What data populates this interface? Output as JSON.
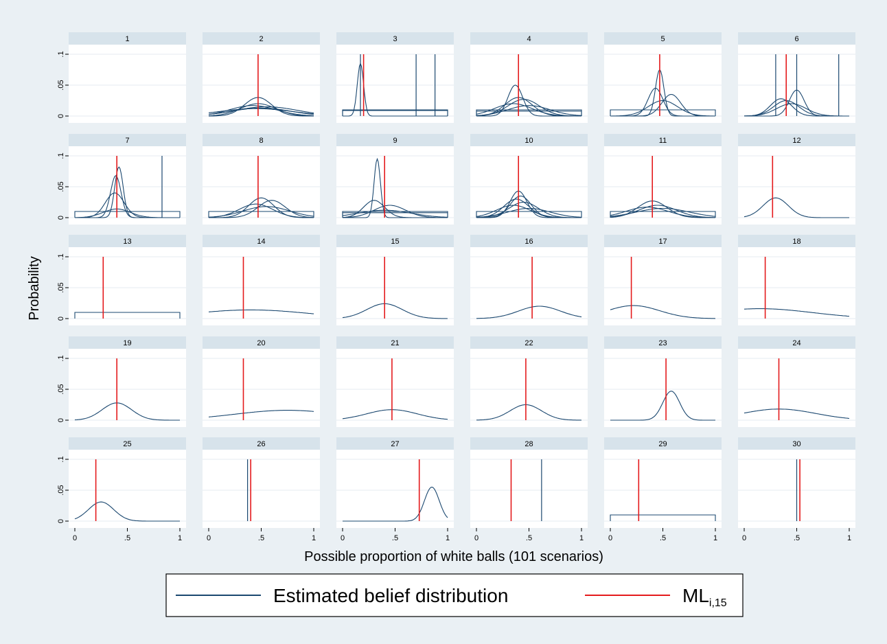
{
  "chart_data": {
    "type": "line",
    "layout": "small-multiples",
    "ylabel": "Probability",
    "xlabel": "Possible proportion of white balls (101 scenarios)",
    "xlim": [
      0,
      1
    ],
    "ylim": [
      0,
      0.1
    ],
    "xticks": [
      "0",
      ".5",
      "1"
    ],
    "yticks": [
      "0",
      ".05",
      ".1"
    ],
    "legend": {
      "placement": "bottom",
      "entries": [
        {
          "label": "Estimated belief distribution",
          "color": "#1a476f"
        },
        {
          "label": "ML",
          "subscript": "i,15",
          "color": "#e41a1c"
        }
      ]
    },
    "panels": [
      {
        "id": "1",
        "ml": null,
        "curves": []
      },
      {
        "id": "2",
        "ml": 0.47,
        "curves": [
          {
            "kind": "gauss",
            "mu": 0.47,
            "sd": 0.13,
            "peak": 0.03
          },
          {
            "kind": "gauss",
            "mu": 0.47,
            "sd": 0.17,
            "peak": 0.02
          },
          {
            "kind": "gauss",
            "mu": 0.5,
            "sd": 0.28,
            "peak": 0.013
          },
          {
            "kind": "gauss",
            "mu": 0.45,
            "sd": 0.35,
            "peak": 0.012
          },
          {
            "kind": "gauss",
            "mu": 0.55,
            "sd": 0.3,
            "peak": 0.015
          },
          {
            "kind": "gauss",
            "mu": 0.42,
            "sd": 0.22,
            "peak": 0.017
          }
        ]
      },
      {
        "id": "3",
        "ml": 0.2,
        "curves": [
          {
            "kind": "gauss",
            "mu": 0.17,
            "sd": 0.03,
            "peak": 0.085
          },
          {
            "kind": "flat",
            "level": 0.01
          },
          {
            "kind": "flat",
            "level": 0.009
          },
          {
            "kind": "spike",
            "x": 0.17
          },
          {
            "kind": "spike",
            "x": 0.7
          },
          {
            "kind": "spike",
            "x": 0.88
          }
        ]
      },
      {
        "id": "4",
        "ml": 0.4,
        "curves": [
          {
            "kind": "gauss",
            "mu": 0.37,
            "sd": 0.07,
            "peak": 0.05
          },
          {
            "kind": "gauss",
            "mu": 0.4,
            "sd": 0.13,
            "peak": 0.03
          },
          {
            "kind": "gauss",
            "mu": 0.45,
            "sd": 0.15,
            "peak": 0.027
          },
          {
            "kind": "gauss",
            "mu": 0.35,
            "sd": 0.18,
            "peak": 0.02
          },
          {
            "kind": "gauss",
            "mu": 0.5,
            "sd": 0.2,
            "peak": 0.017
          },
          {
            "kind": "flat",
            "level": 0.01
          },
          {
            "kind": "flat",
            "level": 0.008
          }
        ]
      },
      {
        "id": "5",
        "ml": 0.47,
        "curves": [
          {
            "kind": "gauss",
            "mu": 0.47,
            "sd": 0.04,
            "peak": 0.075
          },
          {
            "kind": "gauss",
            "mu": 0.43,
            "sd": 0.07,
            "peak": 0.045
          },
          {
            "kind": "gauss",
            "mu": 0.58,
            "sd": 0.09,
            "peak": 0.035
          },
          {
            "kind": "gauss",
            "mu": 0.5,
            "sd": 0.14,
            "peak": 0.025
          },
          {
            "kind": "flat",
            "level": 0.01
          }
        ]
      },
      {
        "id": "6",
        "ml": 0.4,
        "curves": [
          {
            "kind": "gauss",
            "mu": 0.5,
            "sd": 0.07,
            "peak": 0.042
          },
          {
            "kind": "gauss",
            "mu": 0.35,
            "sd": 0.1,
            "peak": 0.028
          },
          {
            "kind": "gauss",
            "mu": 0.4,
            "sd": 0.12,
            "peak": 0.025
          },
          {
            "kind": "gauss",
            "mu": 0.45,
            "sd": 0.14,
            "peak": 0.02
          },
          {
            "kind": "spike",
            "x": 0.3
          },
          {
            "kind": "spike",
            "x": 0.5
          },
          {
            "kind": "spike",
            "x": 0.9
          }
        ]
      },
      {
        "id": "7",
        "ml": 0.4,
        "curves": [
          {
            "kind": "gauss",
            "mu": 0.42,
            "sd": 0.04,
            "peak": 0.082
          },
          {
            "kind": "gauss",
            "mu": 0.39,
            "sd": 0.05,
            "peak": 0.068
          },
          {
            "kind": "gauss",
            "mu": 0.38,
            "sd": 0.09,
            "peak": 0.04
          },
          {
            "kind": "gauss",
            "mu": 0.4,
            "sd": 0.13,
            "peak": 0.014
          },
          {
            "kind": "flat",
            "level": 0.01
          },
          {
            "kind": "spike",
            "x": 0.83
          }
        ]
      },
      {
        "id": "8",
        "ml": 0.47,
        "curves": [
          {
            "kind": "gauss",
            "mu": 0.5,
            "sd": 0.12,
            "peak": 0.032
          },
          {
            "kind": "gauss",
            "mu": 0.6,
            "sd": 0.13,
            "peak": 0.028
          },
          {
            "kind": "gauss",
            "mu": 0.45,
            "sd": 0.16,
            "peak": 0.022
          },
          {
            "kind": "gauss",
            "mu": 0.55,
            "sd": 0.22,
            "peak": 0.018
          },
          {
            "kind": "flat",
            "level": 0.01
          }
        ]
      },
      {
        "id": "9",
        "ml": 0.4,
        "curves": [
          {
            "kind": "gauss",
            "mu": 0.33,
            "sd": 0.03,
            "peak": 0.095
          },
          {
            "kind": "gauss",
            "mu": 0.3,
            "sd": 0.1,
            "peak": 0.028
          },
          {
            "kind": "gauss",
            "mu": 0.45,
            "sd": 0.15,
            "peak": 0.02
          },
          {
            "kind": "gauss",
            "mu": 0.4,
            "sd": 0.25,
            "peak": 0.012
          },
          {
            "kind": "flat",
            "level": 0.01
          },
          {
            "kind": "flat",
            "level": 0.008
          }
        ]
      },
      {
        "id": "10",
        "ml": 0.4,
        "curves": [
          {
            "kind": "gauss",
            "mu": 0.4,
            "sd": 0.08,
            "peak": 0.043
          },
          {
            "kind": "gauss",
            "mu": 0.42,
            "sd": 0.1,
            "peak": 0.035
          },
          {
            "kind": "gauss",
            "mu": 0.38,
            "sd": 0.12,
            "peak": 0.03
          },
          {
            "kind": "gauss",
            "mu": 0.45,
            "sd": 0.14,
            "peak": 0.025
          },
          {
            "kind": "gauss",
            "mu": 0.35,
            "sd": 0.16,
            "peak": 0.02
          },
          {
            "kind": "gauss",
            "mu": 0.5,
            "sd": 0.2,
            "peak": 0.015
          },
          {
            "kind": "flat",
            "level": 0.01
          }
        ]
      },
      {
        "id": "11",
        "ml": 0.4,
        "curves": [
          {
            "kind": "gauss",
            "mu": 0.4,
            "sd": 0.14,
            "peak": 0.027
          },
          {
            "kind": "gauss",
            "mu": 0.45,
            "sd": 0.18,
            "peak": 0.02
          },
          {
            "kind": "gauss",
            "mu": 0.35,
            "sd": 0.2,
            "peak": 0.017
          },
          {
            "kind": "gauss",
            "mu": 0.5,
            "sd": 0.25,
            "peak": 0.015
          },
          {
            "kind": "flat",
            "level": 0.01
          }
        ]
      },
      {
        "id": "12",
        "ml": 0.27,
        "curves": [
          {
            "kind": "gauss",
            "mu": 0.3,
            "sd": 0.12,
            "peak": 0.032
          }
        ]
      },
      {
        "id": "13",
        "ml": 0.27,
        "curves": [
          {
            "kind": "flat",
            "level": 0.01
          }
        ]
      },
      {
        "id": "14",
        "ml": 0.33,
        "curves": [
          {
            "kind": "gauss",
            "mu": 0.4,
            "sd": 0.55,
            "peak": 0.014
          }
        ]
      },
      {
        "id": "15",
        "ml": 0.4,
        "curves": [
          {
            "kind": "gauss",
            "mu": 0.4,
            "sd": 0.17,
            "peak": 0.024
          }
        ]
      },
      {
        "id": "16",
        "ml": 0.53,
        "curves": [
          {
            "kind": "gauss",
            "mu": 0.6,
            "sd": 0.2,
            "peak": 0.02
          }
        ]
      },
      {
        "id": "17",
        "ml": 0.2,
        "curves": [
          {
            "kind": "gauss",
            "mu": 0.22,
            "sd": 0.25,
            "peak": 0.021
          }
        ]
      },
      {
        "id": "18",
        "ml": 0.2,
        "curves": [
          {
            "kind": "gauss",
            "mu": 0.15,
            "sd": 0.5,
            "peak": 0.016
          }
        ]
      },
      {
        "id": "19",
        "ml": 0.4,
        "curves": [
          {
            "kind": "gauss",
            "mu": 0.4,
            "sd": 0.14,
            "peak": 0.028
          }
        ]
      },
      {
        "id": "20",
        "ml": 0.33,
        "curves": [
          {
            "kind": "gauss",
            "mu": 0.75,
            "sd": 0.5,
            "peak": 0.016
          }
        ]
      },
      {
        "id": "21",
        "ml": 0.47,
        "curves": [
          {
            "kind": "gauss",
            "mu": 0.47,
            "sd": 0.24,
            "peak": 0.017
          }
        ]
      },
      {
        "id": "22",
        "ml": 0.47,
        "curves": [
          {
            "kind": "gauss",
            "mu": 0.47,
            "sd": 0.15,
            "peak": 0.025
          }
        ]
      },
      {
        "id": "23",
        "ml": 0.53,
        "curves": [
          {
            "kind": "gauss",
            "mu": 0.58,
            "sd": 0.08,
            "peak": 0.047
          }
        ]
      },
      {
        "id": "24",
        "ml": 0.33,
        "curves": [
          {
            "kind": "gauss",
            "mu": 0.33,
            "sd": 0.35,
            "peak": 0.018
          }
        ]
      },
      {
        "id": "25",
        "ml": 0.2,
        "curves": [
          {
            "kind": "gauss",
            "mu": 0.25,
            "sd": 0.12,
            "peak": 0.031
          }
        ]
      },
      {
        "id": "26",
        "ml": 0.4,
        "curves": [
          {
            "kind": "spike",
            "x": 0.37
          }
        ]
      },
      {
        "id": "27",
        "ml": 0.73,
        "curves": [
          {
            "kind": "gauss",
            "mu": 0.85,
            "sd": 0.07,
            "peak": 0.055
          }
        ]
      },
      {
        "id": "28",
        "ml": 0.33,
        "curves": [
          {
            "kind": "spike",
            "x": 0.62
          }
        ]
      },
      {
        "id": "29",
        "ml": 0.27,
        "curves": [
          {
            "kind": "flat",
            "level": 0.01
          }
        ]
      },
      {
        "id": "30",
        "ml": 0.53,
        "curves": [
          {
            "kind": "spike",
            "x": 0.5
          }
        ]
      }
    ]
  }
}
